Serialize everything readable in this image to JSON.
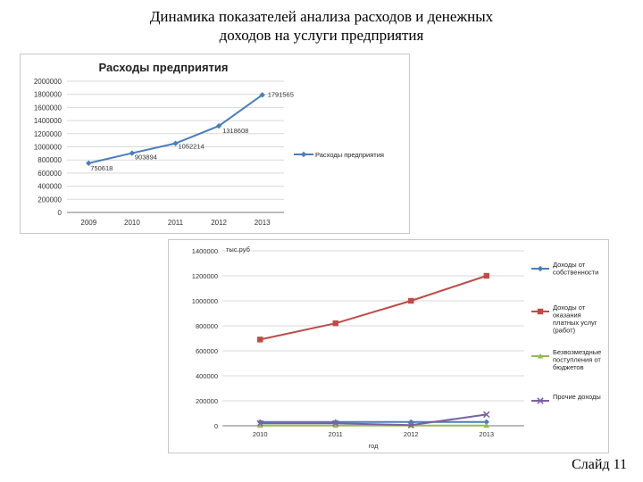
{
  "slide": {
    "title_line1": "Динамика показателей анализа расходов и денежных",
    "title_line2": "доходов на услуги предприятия",
    "number": "Слайд 11"
  },
  "chart_data": [
    {
      "type": "line",
      "title": "Расходы предприятия",
      "categories": [
        "2009",
        "2010",
        "2011",
        "2012",
        "2013"
      ],
      "series": [
        {
          "name": "Расходы предприятия",
          "values": [
            750618,
            903894,
            1052214,
            1318608,
            1791565
          ],
          "color": "#4a7ebb",
          "marker": "diamond"
        }
      ],
      "data_labels": [
        "750618",
        "903894",
        "1052214",
        "1318608",
        "1791565"
      ],
      "yticks": [
        "0",
        "200000",
        "400000",
        "600000",
        "800000",
        "1000000",
        "1200000",
        "1400000",
        "1600000",
        "1800000",
        "2000000"
      ],
      "ylim": [
        0,
        2000000
      ],
      "legend": "right",
      "grid": true
    },
    {
      "type": "line",
      "title": "",
      "ylabel": "тыс.руб",
      "xlabel": "год",
      "categories": [
        "2010",
        "2011",
        "2012",
        "2013"
      ],
      "series": [
        {
          "name": "Доходы от собственности",
          "values": [
            30000,
            30000,
            30000,
            30000
          ],
          "color": "#4a7ebb",
          "marker": "diamond"
        },
        {
          "name": "Доходы от оказания платных услуг (работ)",
          "values": [
            690000,
            820000,
            1000000,
            1200000
          ],
          "color": "#be4b48",
          "marker": "square"
        },
        {
          "name": "Безвозмездные поступления от бюджетов",
          "values": [
            2000,
            2000,
            2000,
            2000
          ],
          "color": "#98b954",
          "marker": "triangle"
        },
        {
          "name": "Прочие доходы",
          "values": [
            20000,
            20000,
            5000,
            90000
          ],
          "color": "#7d60a0",
          "marker": "x"
        }
      ],
      "yticks": [
        "0",
        "200000",
        "400000",
        "600000",
        "800000",
        "1000000",
        "1200000",
        "1400000"
      ],
      "ylim": [
        0,
        1400000
      ],
      "legend": "right",
      "grid": true
    }
  ]
}
